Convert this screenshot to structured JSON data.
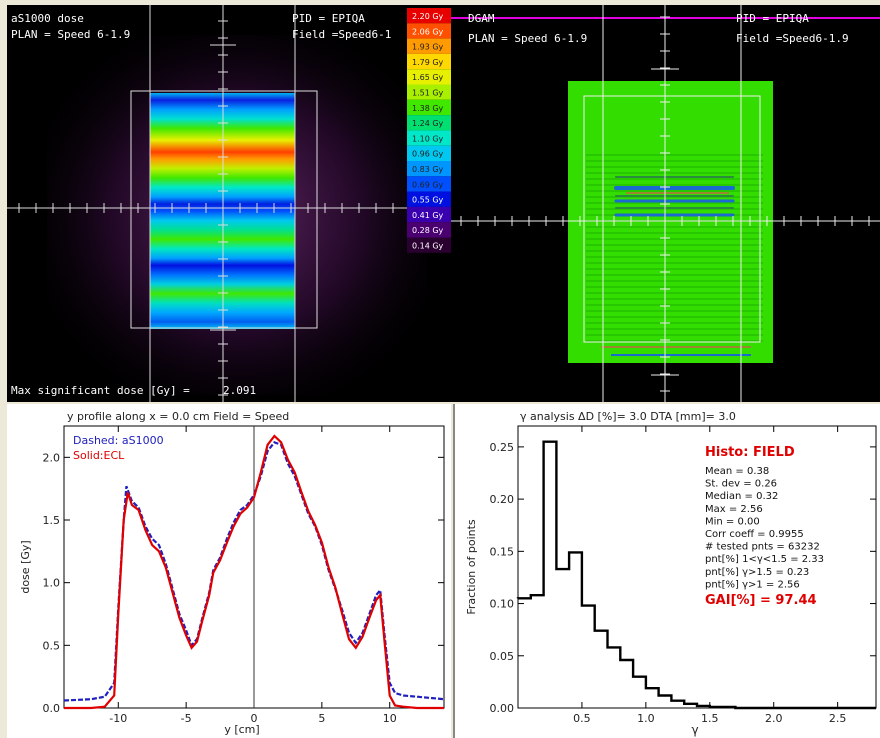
{
  "dose_map": {
    "title_left_1": "aS1000 dose",
    "title_left_2": "PLAN = Speed 6-1.9",
    "title_right_1": "PID = EPIQA",
    "title_right_2": "Field =Speed6-1",
    "footer": "Max significant dose [Gy] =",
    "footer_value": "2.091",
    "colorbar": [
      {
        "label": "2.20 Gy",
        "color": "#e80000"
      },
      {
        "label": "2.06 Gy",
        "color": "#ff5000"
      },
      {
        "label": "1.93 Gy",
        "color": "#ff9a00"
      },
      {
        "label": "1.79 Gy",
        "color": "#ffd800"
      },
      {
        "label": "1.65 Gy",
        "color": "#e6f000"
      },
      {
        "label": "1.51 Gy",
        "color": "#a8f000"
      },
      {
        "label": "1.38 Gy",
        "color": "#40e800"
      },
      {
        "label": "1.24 Gy",
        "color": "#00e070"
      },
      {
        "label": "1.10 Gy",
        "color": "#00e8c8"
      },
      {
        "label": "0.96 Gy",
        "color": "#00c8f0"
      },
      {
        "label": "0.83 Gy",
        "color": "#0096ff"
      },
      {
        "label": "0.69 Gy",
        "color": "#0050ff"
      },
      {
        "label": "0.55 Gy",
        "color": "#0010e0"
      },
      {
        "label": "0.41 Gy",
        "color": "#3a00b0"
      },
      {
        "label": "0.28 Gy",
        "color": "#4a0070"
      },
      {
        "label": "0.14 Gy",
        "color": "#2a0030"
      }
    ]
  },
  "gamma_map": {
    "title_left_1": "DGAM",
    "title_left_2": "PLAN = Speed 6-1.9",
    "title_right_1": "PID = EPIQA",
    "title_right_2": "Field =Speed6-1.9"
  },
  "profile_plot": {
    "title": "y profile along x =    0.0 cm    Field = Speed",
    "legend_dashed": "Dashed: aS1000",
    "legend_solid": "Solid:ECL",
    "xlabel": "y [cm]",
    "ylabel": "dose [Gy]",
    "colors": {
      "dashed": "#2020c0",
      "solid": "#e00000"
    }
  },
  "gamma_hist": {
    "title": "γ analysis   ΔD [%]= 3.0   DTA [mm]= 3.0",
    "xlabel": "γ",
    "ylabel": "Fraction of points",
    "stats_title": "Histo: FIELD",
    "stats": [
      "Mean =  0.38",
      "St. dev =  0.26",
      "Median =  0.32",
      "Max =     2.56",
      "Min =     0.00",
      "Corr coeff = 0.9955",
      "# tested pnts = 63232",
      "pnt[%]  1<γ<1.5 =   2.33",
      "pnt[%]  γ>1.5 =  0.23",
      "pnt[%]  γ>1 =   2.56"
    ],
    "gai_label": "GAI[%]  =   97.44"
  },
  "chart_data": [
    {
      "type": "line",
      "title": "y profile along x =    0.0 cm    Field = Speed",
      "xlabel": "y [cm]",
      "ylabel": "dose [Gy]",
      "xlim": [
        -14,
        14
      ],
      "ylim": [
        0,
        2.25
      ],
      "xticks": [
        -10,
        -5,
        0,
        5,
        10
      ],
      "yticks": [
        0.0,
        0.5,
        1.0,
        1.5,
        2.0
      ],
      "series": [
        {
          "name": "Dashed: aS1000",
          "x": [
            -14,
            -12,
            -11,
            -10.3,
            -10,
            -9.6,
            -9.4,
            -9.0,
            -8.5,
            -8.0,
            -7.5,
            -7.0,
            -6.5,
            -6.0,
            -5.5,
            -5.0,
            -4.6,
            -4.2,
            -3.8,
            -3.3,
            -3.0,
            -2.5,
            -2.0,
            -1.5,
            -1.0,
            -0.5,
            0.0,
            0.5,
            1.0,
            1.5,
            2.0,
            2.5,
            3.0,
            3.5,
            4.0,
            4.5,
            5.0,
            5.5,
            6.0,
            6.5,
            7.0,
            7.5,
            8.0,
            8.5,
            9.0,
            9.3,
            9.6,
            10.0,
            10.4,
            11,
            12,
            14
          ],
          "y": [
            0.06,
            0.07,
            0.09,
            0.2,
            0.8,
            1.5,
            1.77,
            1.65,
            1.6,
            1.45,
            1.35,
            1.3,
            1.15,
            0.95,
            0.75,
            0.62,
            0.5,
            0.55,
            0.72,
            0.92,
            1.1,
            1.2,
            1.35,
            1.48,
            1.58,
            1.62,
            1.7,
            1.85,
            2.05,
            2.12,
            2.1,
            1.95,
            1.85,
            1.7,
            1.55,
            1.45,
            1.3,
            1.1,
            0.95,
            0.78,
            0.6,
            0.52,
            0.6,
            0.75,
            0.9,
            0.94,
            0.6,
            0.2,
            0.12,
            0.1,
            0.09,
            0.07
          ]
        },
        {
          "name": "Solid:ECL",
          "x": [
            -14,
            -12,
            -11,
            -10.3,
            -10,
            -9.6,
            -9.3,
            -9.0,
            -8.5,
            -8.0,
            -7.5,
            -7.0,
            -6.5,
            -6.0,
            -5.5,
            -5.0,
            -4.6,
            -4.2,
            -3.8,
            -3.3,
            -3.0,
            -2.5,
            -2.0,
            -1.5,
            -1.0,
            -0.5,
            0.0,
            0.5,
            1.0,
            1.5,
            2.0,
            2.5,
            3.0,
            3.5,
            4.0,
            4.5,
            5.0,
            5.5,
            6.0,
            6.5,
            7.0,
            7.5,
            8.0,
            8.5,
            9.0,
            9.3,
            9.6,
            10.0,
            10.4,
            11,
            12,
            14
          ],
          "y": [
            0.0,
            0.0,
            0.01,
            0.1,
            0.75,
            1.5,
            1.72,
            1.62,
            1.58,
            1.42,
            1.3,
            1.25,
            1.12,
            0.92,
            0.72,
            0.58,
            0.48,
            0.53,
            0.7,
            0.9,
            1.08,
            1.18,
            1.32,
            1.45,
            1.55,
            1.6,
            1.68,
            1.88,
            2.1,
            2.17,
            2.12,
            1.98,
            1.88,
            1.72,
            1.57,
            1.46,
            1.32,
            1.12,
            0.96,
            0.75,
            0.55,
            0.48,
            0.57,
            0.72,
            0.86,
            0.9,
            0.55,
            0.1,
            0.02,
            0.01,
            0.0,
            0.0
          ]
        }
      ]
    },
    {
      "type": "bar",
      "title": "γ analysis   ΔD [%]= 3.0   DTA [mm]= 3.0",
      "xlabel": "γ",
      "ylabel": "Fraction of points",
      "xlim": [
        0,
        2.8
      ],
      "ylim": [
        0,
        0.27
      ],
      "xticks": [
        0.5,
        1.0,
        1.5,
        2.0,
        2.5
      ],
      "yticks": [
        0.0,
        0.05,
        0.1,
        0.15,
        0.2,
        0.25
      ],
      "bin_width": 0.1,
      "bin_starts": [
        0.0,
        0.1,
        0.2,
        0.3,
        0.4,
        0.5,
        0.6,
        0.7,
        0.8,
        0.9,
        1.0,
        1.1,
        1.2,
        1.3,
        1.4,
        1.5,
        1.6,
        1.7,
        1.8,
        1.9
      ],
      "values": [
        0.105,
        0.108,
        0.255,
        0.133,
        0.149,
        0.098,
        0.074,
        0.058,
        0.046,
        0.03,
        0.019,
        0.012,
        0.007,
        0.004,
        0.002,
        0.001,
        0.001,
        0.0,
        0.0,
        0.0
      ]
    }
  ]
}
